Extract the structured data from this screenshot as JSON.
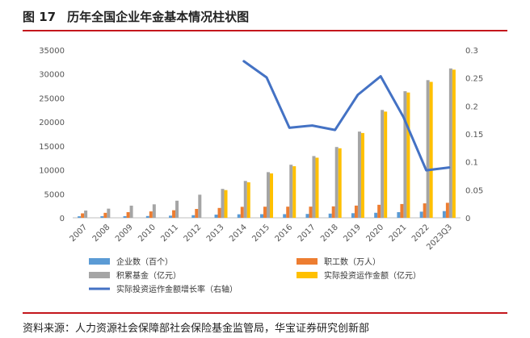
{
  "header": {
    "figure_number": "图 17",
    "title": "历年全国企业年金基本情况柱状图"
  },
  "source": "资料来源：人力资源社会保障部社会保险基金监管局，华宝证券研究创新部",
  "colors": {
    "rule": "#c4161c",
    "enterprises": "#5b9bd5",
    "employees": "#ed7d31",
    "fund": "#a5a5a5",
    "invested": "#ffc000",
    "growth": "#4472c4"
  },
  "chart_data": {
    "type": "bar",
    "categories": [
      "2007",
      "2008",
      "2009",
      "2010",
      "2011",
      "2012",
      "2013",
      "2014",
      "2015",
      "2016",
      "2017",
      "2018",
      "2019",
      "2020",
      "2021",
      "2022",
      "2023Q3"
    ],
    "y_left_lim": [
      0,
      35000
    ],
    "y_left_ticks": [
      "0",
      "5000",
      "10000",
      "15000",
      "20000",
      "25000",
      "30000",
      "35000"
    ],
    "y_right_lim": [
      0,
      0.3
    ],
    "y_right_ticks": [
      "0",
      "0.05",
      "0.1",
      "0.15",
      "0.2",
      "0.25",
      "0.3"
    ],
    "grid": false,
    "legend_position": "bottom",
    "series": [
      {
        "name": "企业数（百个）",
        "type": "bar",
        "axis": "left",
        "values": [
          320,
          331,
          335,
          371,
          449,
          548,
          661,
          733,
          755,
          763,
          804,
          874,
          960,
          1050,
          1176,
          1280,
          1400
        ]
      },
      {
        "name": "职工数（万人）",
        "type": "bar",
        "axis": "left",
        "values": [
          929,
          1038,
          1179,
          1335,
          1577,
          1847,
          2056,
          2293,
          2316,
          2325,
          2331,
          2388,
          2548,
          2718,
          2875,
          3010,
          3130
        ]
      },
      {
        "name": "积累基金（亿元）",
        "type": "bar",
        "axis": "left",
        "values": [
          1519,
          1911,
          2533,
          2809,
          3570,
          4821,
          6035,
          7689,
          9526,
          11075,
          12880,
          14770,
          17985,
          22497,
          26406,
          28718,
          31157
        ]
      },
      {
        "name": "实际投资运作金额（亿元）",
        "type": "bar",
        "axis": "left",
        "values": [
          null,
          null,
          null,
          null,
          null,
          null,
          5783,
          7403,
          9260,
          10756,
          12538,
          14502,
          17689,
          22150,
          26135,
          28354,
          30900
        ]
      },
      {
        "name": "实际投资运作金额增长率（右轴）",
        "type": "line",
        "axis": "right",
        "values": [
          null,
          null,
          null,
          null,
          null,
          null,
          null,
          0.28,
          0.251,
          0.161,
          0.165,
          0.157,
          0.22,
          0.253,
          0.18,
          0.085,
          0.09
        ]
      }
    ]
  }
}
